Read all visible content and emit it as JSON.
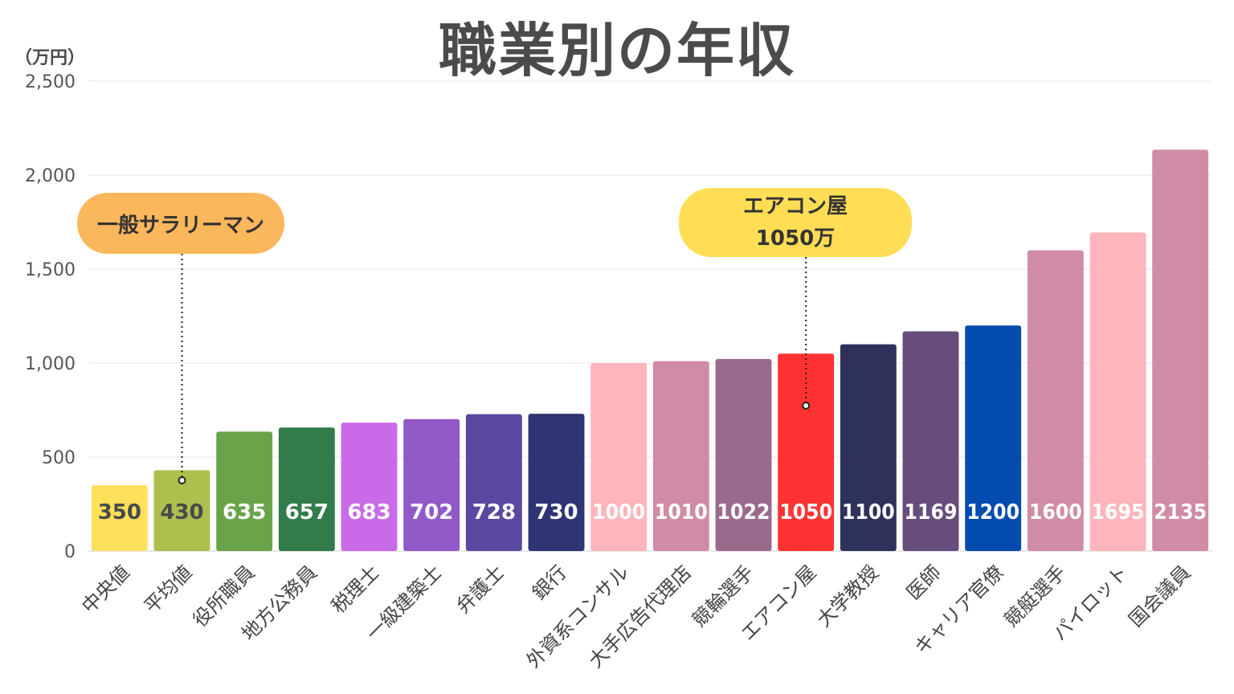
{
  "title": "職業別の年収",
  "unit_label": "（万円）",
  "callouts": {
    "salaryman": {
      "label": "一般サラリーマン",
      "color": "#fbb75c"
    },
    "aircon": {
      "line1": "エアコン屋",
      "line2": "1050万",
      "color": "#ffdd55"
    }
  },
  "chart_data": {
    "type": "bar",
    "title": "職業別の年収",
    "ylabel": "（万円）",
    "xlabel": "",
    "ylim": [
      0,
      2500
    ],
    "yticks": [
      0,
      500,
      1000,
      1500,
      2000,
      2500
    ],
    "ytick_labels": [
      "0",
      "500",
      "1,000",
      "1,500",
      "2,000",
      "2,500"
    ],
    "grid": true,
    "categories": [
      "中央値",
      "平均値",
      "役所職員",
      "地方公務員",
      "税理士",
      "一級建築士",
      "弁護士",
      "銀行",
      "外資系コンサル",
      "大手広告代理店",
      "競輪選手",
      "エアコン屋",
      "大学教授",
      "医師",
      "キャリア官僚",
      "競艇選手",
      "パイロット",
      "国会議員"
    ],
    "values": [
      350,
      430,
      635,
      657,
      683,
      702,
      728,
      730,
      1000,
      1010,
      1022,
      1050,
      1100,
      1169,
      1200,
      1600,
      1695,
      2135
    ],
    "value_labels": [
      "350",
      "430",
      "635",
      "657",
      "683",
      "702",
      "728",
      "730",
      "1000",
      "1010",
      "1022",
      "1050",
      "1100",
      "1169",
      "1200",
      "1600",
      "1695",
      "2135"
    ],
    "colors": [
      "#fee05a",
      "#adc04e",
      "#6aa44a",
      "#317c4a",
      "#c96be8",
      "#9059c7",
      "#5a479f",
      "#2e3474",
      "#ffb5bb",
      "#d08ba6",
      "#9a6a8c",
      "#fe3232",
      "#2f305c",
      "#674d7b",
      "#044bb0",
      "#d08ba6",
      "#ffb5bb",
      "#d08ba6"
    ],
    "value_label_colors": [
      "#4a4a4a",
      "#4a4a4a",
      "#ffffff",
      "#ffffff",
      "#ffffff",
      "#ffffff",
      "#ffffff",
      "#ffffff",
      "#ffffff",
      "#ffffff",
      "#ffffff",
      "#ffffff",
      "#ffffff",
      "#ffffff",
      "#ffffff",
      "#ffffff",
      "#ffffff",
      "#ffffff"
    ]
  }
}
